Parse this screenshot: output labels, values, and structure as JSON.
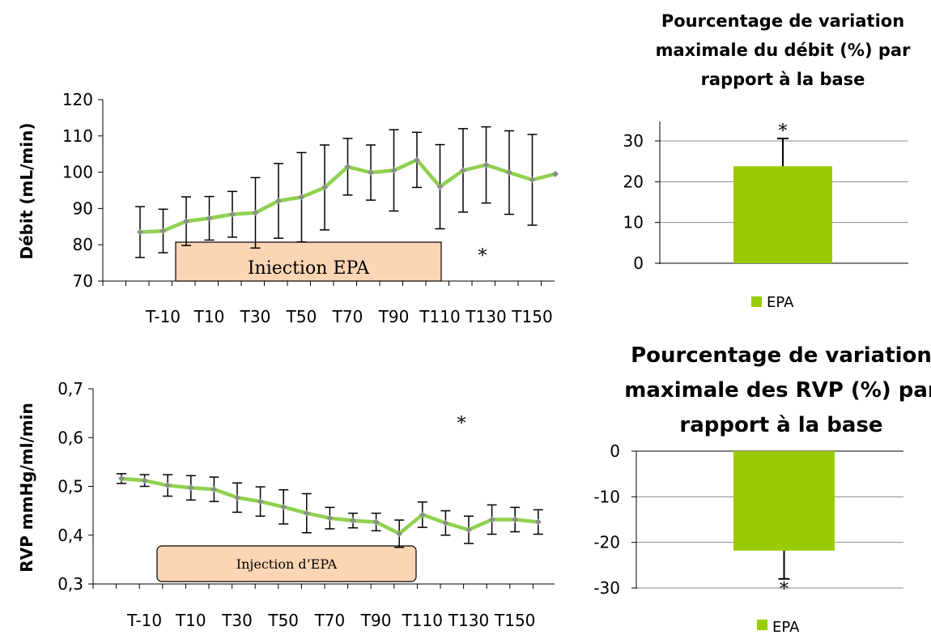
{
  "colors": {
    "series": "#8fd14f",
    "marker": "#8a8f8a",
    "bar": "#99cc00",
    "error": "#000000",
    "injection_fill": "#fcd5b4",
    "injection_stroke": "#000000",
    "axis": "#000000",
    "grid": "#8c8c8c"
  },
  "chart_data": [
    {
      "type": "line",
      "ylabel": "Débit  (mL/min)",
      "ylim": [
        70,
        120
      ],
      "yticks": [
        "70",
        "80",
        "90",
        "100",
        "110",
        "120"
      ],
      "xticks": [
        "T-10",
        "T10",
        "T30",
        "T50",
        "T70",
        "T90",
        "T110",
        "T130",
        "T150"
      ],
      "series": [
        {
          "values": [
            83.5,
            83.8,
            86.5,
            87.3,
            88.4,
            88.8,
            92.1,
            93.1,
            95.8,
            101.5,
            99.9,
            100.5,
            103.4,
            96.0,
            100.5,
            102.0,
            99.9,
            97.9,
            99.5
          ],
          "error": [
            7.0,
            6.0,
            6.7,
            6.0,
            6.3,
            9.7,
            10.3,
            12.3,
            11.7,
            7.8,
            7.6,
            11.2,
            7.6,
            11.6,
            11.5,
            10.5,
            11.5,
            12.5,
            0
          ]
        }
      ],
      "annotation": "Iniection EPA",
      "star": "*"
    },
    {
      "type": "line",
      "ylabel": "RVP  mmHg/ml/min",
      "ylim": [
        0.3,
        0.7
      ],
      "yticks": [
        "0,3",
        "0,4",
        "0,5",
        "0,6",
        "0,7"
      ],
      "xticks": [
        "T-10",
        "T10",
        "T30",
        "T50",
        "T70",
        "T90",
        "T110",
        "T130",
        "T150"
      ],
      "series": [
        {
          "values": [
            0.516,
            0.512,
            0.502,
            0.497,
            0.494,
            0.477,
            0.469,
            0.458,
            0.445,
            0.435,
            0.43,
            0.427,
            0.403,
            0.442,
            0.425,
            0.411,
            0.432,
            0.432,
            0.427
          ],
          "error": [
            0.01,
            0.012,
            0.022,
            0.025,
            0.025,
            0.03,
            0.03,
            0.035,
            0.04,
            0.022,
            0.015,
            0.018,
            0.028,
            0.026,
            0.025,
            0.028,
            0.03,
            0.025,
            0.025
          ]
        }
      ],
      "annotation": "Injection d’EPA",
      "star": "*"
    },
    {
      "type": "bar",
      "title": "Pourcentage de variation maximale du débit (%) par rapport à la base",
      "title_lines": [
        "Pourcentage de variation",
        "maximale du débit (%) par",
        "rapport à la base"
      ],
      "categories": [
        "EPA"
      ],
      "values": [
        23.8
      ],
      "error": [
        6.8
      ],
      "ylim": [
        0,
        35
      ],
      "yticks": [
        "0",
        "10",
        "20",
        "30"
      ],
      "legend": "EPA",
      "star": "*",
      "grid": true
    },
    {
      "type": "bar",
      "title": "Pourcentage de variation maximale des RVP (%) par rapport à la base",
      "title_lines": [
        "Pourcentage de variation",
        "maximale des RVP (%) par",
        "rapport à la base"
      ],
      "categories": [
        "EPA"
      ],
      "values": [
        -21.8
      ],
      "error": [
        6.2
      ],
      "ylim": [
        -30,
        0
      ],
      "yticks": [
        "-30",
        "-20",
        "-10",
        "0"
      ],
      "legend": "EPA",
      "star": "*",
      "grid": true
    }
  ]
}
